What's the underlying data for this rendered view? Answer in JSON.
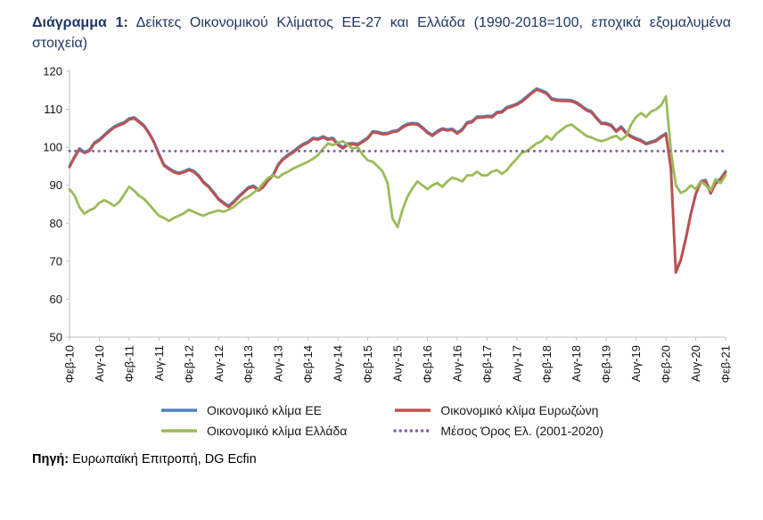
{
  "title": {
    "label": "Διάγραμμα 1:",
    "text": "Δείκτες Οικονομικού Κλίματος ΕΕ-27 και Ελλάδα (1990-2018=100, εποχικά εξομαλυμένα στοιχεία)"
  },
  "source": {
    "label": "Πηγή:",
    "text": "Ευρωπαϊκή Επιτροπή, DG Ecfin"
  },
  "chart_data": {
    "type": "line",
    "ylim": [
      50,
      120
    ],
    "yticks": [
      50,
      60,
      70,
      80,
      90,
      100,
      110,
      120
    ],
    "x_tick_interval": 6,
    "x_tick_labels": [
      "Φεβ-10",
      "Αυγ-10",
      "Φεβ-11",
      "Αυγ-11",
      "Φεβ-12",
      "Αυγ-12",
      "Φεβ-13",
      "Αυγ-13",
      "Φεβ-14",
      "Αυγ-14",
      "Φεβ-15",
      "Αυγ-15",
      "Φεβ-16",
      "Αυγ-16",
      "Φεβ-17",
      "Αυγ-17",
      "Φεβ-18",
      "Αυγ-18",
      "Φεβ-19",
      "Αυγ-19",
      "Φεβ-20",
      "Αυγ-20",
      "Φεβ-21"
    ],
    "x_start": "Φεβ-10",
    "x_end": "Φεβ-21",
    "frequency": "monthly",
    "grid": false,
    "legend_position": "bottom",
    "series": [
      {
        "key": "ee",
        "name": "Οικονομικό κλίμα ΕΕ",
        "color": "#4F81BD",
        "dash": "solid",
        "values": [
          95.1,
          97.6,
          99.7,
          98.8,
          99.3,
          101.3,
          102.1,
          103.3,
          104.5,
          105.5,
          106.1,
          106.6,
          107.6,
          107.9,
          106.9,
          105.8,
          103.9,
          101.5,
          98.3,
          95.5,
          94.5,
          93.7,
          93.3,
          93.7,
          94.3,
          93.8,
          92.6,
          90.9,
          89.8,
          88.2,
          86.5,
          85.5,
          84.6,
          85.7,
          87.1,
          88.3,
          89.5,
          89.9,
          88.9,
          89.8,
          91.6,
          92.9,
          95.6,
          97.1,
          98.1,
          98.9,
          100.0,
          100.9,
          101.5,
          102.5,
          102.3,
          102.9,
          102.3,
          102.5,
          100.9,
          100.0,
          101.0,
          101.1,
          100.9,
          101.7,
          102.6,
          104.2,
          104.1,
          103.7,
          103.8,
          104.3,
          104.5,
          105.5,
          106.2,
          106.4,
          106.3,
          105.3,
          104.1,
          103.3,
          104.3,
          105.0,
          104.7,
          104.9,
          103.9,
          104.8,
          106.6,
          106.9,
          108.1,
          108.1,
          108.3,
          108.2,
          109.3,
          109.5,
          110.6,
          111.0,
          111.5,
          112.3,
          113.4,
          114.5,
          115.5,
          115.0,
          114.4,
          112.9,
          112.6,
          112.5,
          112.5,
          112.4,
          111.9,
          111.0,
          110.0,
          109.5,
          107.9,
          106.5,
          106.4,
          105.9,
          104.4,
          105.5,
          103.9,
          103.0,
          102.4,
          101.9,
          101.1,
          101.5,
          101.9,
          102.9,
          103.7,
          94.5,
          67.3,
          70.5,
          76.1,
          82.6,
          87.8,
          91.1,
          91.4,
          88.1,
          90.7,
          91.8,
          93.7
        ]
      },
      {
        "key": "eurozone",
        "name": "Οικονομικό κλίμα Ευρωζώνη",
        "color": "#C0504D",
        "dash": "solid",
        "values": [
          94.8,
          97.3,
          99.4,
          98.5,
          99.0,
          101.0,
          101.8,
          103.0,
          104.2,
          105.2,
          105.8,
          106.3,
          107.3,
          107.6,
          106.6,
          105.5,
          103.6,
          101.2,
          98.0,
          95.2,
          94.2,
          93.4,
          93.0,
          93.4,
          94.0,
          93.5,
          92.3,
          90.6,
          89.5,
          87.9,
          86.2,
          85.2,
          84.3,
          85.4,
          86.8,
          88.0,
          89.2,
          89.6,
          88.6,
          89.5,
          91.3,
          92.6,
          95.3,
          96.8,
          97.8,
          98.6,
          99.7,
          100.6,
          101.2,
          102.2,
          102.0,
          102.6,
          102.0,
          102.2,
          100.6,
          99.7,
          100.7,
          100.8,
          100.6,
          101.4,
          102.3,
          103.9,
          103.8,
          103.4,
          103.5,
          104.0,
          104.2,
          105.2,
          105.9,
          106.1,
          106.0,
          105.0,
          103.8,
          103.0,
          104.0,
          104.7,
          104.4,
          104.6,
          103.6,
          104.5,
          106.3,
          106.6,
          107.8,
          107.8,
          108.0,
          107.9,
          109.0,
          109.2,
          110.3,
          110.7,
          111.2,
          112.0,
          113.1,
          114.2,
          115.2,
          114.7,
          114.1,
          112.6,
          112.3,
          112.2,
          112.2,
          112.1,
          111.6,
          110.7,
          109.7,
          109.2,
          107.6,
          106.2,
          106.1,
          105.6,
          104.1,
          105.2,
          103.6,
          102.7,
          102.1,
          101.6,
          100.8,
          101.2,
          101.6,
          102.6,
          103.4,
          94.2,
          67.0,
          70.2,
          75.8,
          82.3,
          87.5,
          90.8,
          91.1,
          87.8,
          90.4,
          91.5,
          93.4
        ]
      },
      {
        "key": "greece",
        "name": "Οικονομικό κλίμα Ελλάδα",
        "color": "#9BBB59",
        "dash": "solid",
        "values": [
          89.0,
          87.3,
          84.2,
          82.5,
          83.4,
          84.0,
          85.4,
          86.1,
          85.4,
          84.6,
          85.6,
          87.6,
          89.6,
          88.6,
          87.2,
          86.4,
          85.0,
          83.4,
          82.0,
          81.4,
          80.6,
          81.4,
          82.0,
          82.6,
          83.6,
          83.0,
          82.4,
          82.0,
          82.6,
          83.0,
          83.4,
          83.0,
          83.6,
          84.2,
          85.4,
          86.4,
          87.0,
          88.0,
          89.0,
          90.6,
          92.0,
          92.6,
          92.0,
          93.0,
          93.6,
          94.4,
          95.0,
          95.6,
          96.2,
          97.0,
          98.0,
          99.6,
          101.0,
          100.6,
          101.2,
          101.6,
          100.6,
          99.6,
          100.0,
          98.0,
          96.6,
          96.2,
          95.0,
          93.6,
          90.6,
          81.2,
          79.0,
          83.6,
          87.0,
          89.2,
          91.0,
          90.0,
          89.0,
          90.0,
          90.6,
          89.6,
          91.0,
          92.0,
          91.6,
          91.0,
          92.6,
          92.6,
          93.6,
          92.6,
          92.6,
          93.6,
          94.0,
          93.0,
          94.0,
          95.6,
          97.0,
          98.6,
          99.0,
          100.0,
          101.0,
          101.6,
          103.0,
          102.0,
          103.6,
          104.6,
          105.6,
          106.0,
          105.0,
          104.0,
          103.0,
          102.6,
          102.0,
          101.6,
          102.0,
          102.6,
          103.0,
          102.0,
          103.0,
          106.0,
          108.0,
          109.0,
          108.0,
          109.4,
          110.0,
          111.0,
          113.4,
          99.0,
          90.0,
          88.0,
          88.6,
          90.0,
          89.0,
          91.0,
          90.0,
          88.6,
          91.6,
          90.6,
          92.6
        ]
      },
      {
        "key": "mean",
        "name": "Μέσος Όρος Ελ. (2001-2020)",
        "color": "#8064A2",
        "dash": "dotted",
        "constant": 99
      }
    ]
  }
}
